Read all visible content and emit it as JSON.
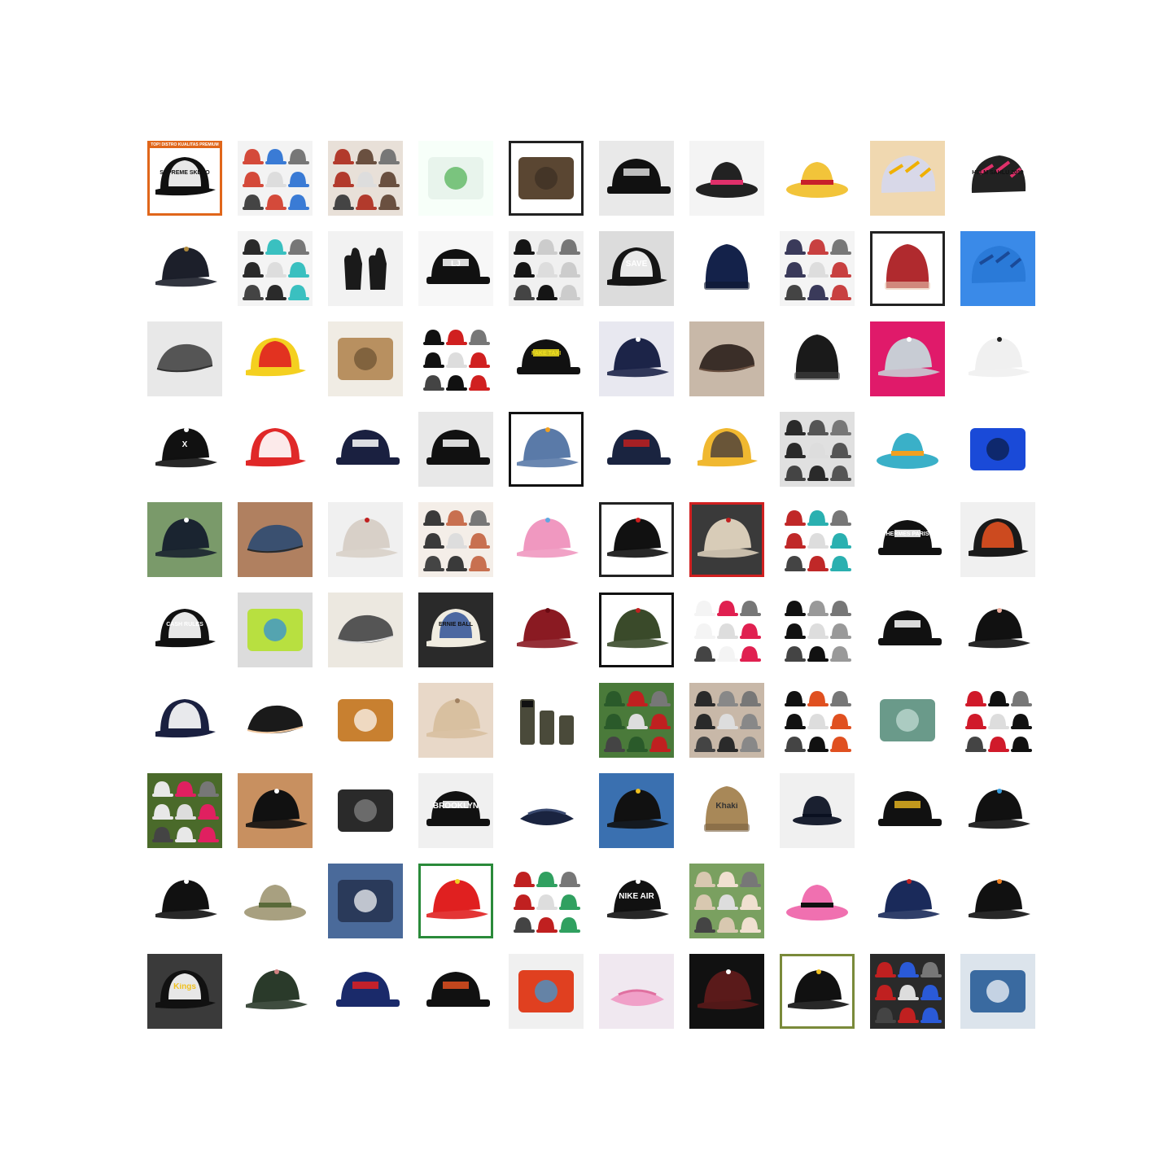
{
  "colors": {
    "background": "#ffffff"
  },
  "grid": {
    "rows": 10,
    "columns": 10
  },
  "tiles": [
    {
      "subject": "trucker-cap",
      "cap": "#101010",
      "bg": "#ffffff",
      "accent": "#ffffff",
      "frame": "#e0661a",
      "text": "SUPREME SKERO",
      "textColor": "#111111",
      "banner": "TOP! DISTRO KUALITAS PREMIUM"
    },
    {
      "subject": "cap-collage",
      "cap": "#d44a3a",
      "bg": "#f3f3f3",
      "accent": "#3a7bd5"
    },
    {
      "subject": "cap-collage",
      "cap": "#b23a2c",
      "bg": "#e8e0d8",
      "accent": "#6a5040"
    },
    {
      "subject": "product-photo",
      "cap": "#e8f4ec",
      "bg": "#f7fff9",
      "accent": "#4caf50"
    },
    {
      "subject": "product-photo",
      "cap": "#5a4632",
      "bg": "#ffffff",
      "accent": "#3a2e22",
      "frame": "#222222"
    },
    {
      "subject": "snapback",
      "cap": "#111111",
      "bg": "#e9e9e9",
      "accent": "#dddddd"
    },
    {
      "subject": "bucket-hat",
      "cap": "#222222",
      "bg": "#f4f4f4",
      "accent": "#e0306a"
    },
    {
      "subject": "bucket-hat",
      "cap": "#f2c43a",
      "bg": "#ffffff",
      "accent": "#c8202a"
    },
    {
      "subject": "helmet",
      "cap": "#d8d8e8",
      "bg": "#f0d8b0",
      "accent": "#f0b000"
    },
    {
      "subject": "helmet",
      "cap": "#222222",
      "bg": "#ffffff",
      "accent": "#e0306a",
      "text": "HELM SAHLU 2019",
      "textColor": "#111111"
    },
    {
      "subject": "baseball-cap",
      "cap": "#1c1f2a",
      "bg": "#ffffff",
      "accent": "#b08a3c"
    },
    {
      "subject": "cap-collage",
      "cap": "#2a2a2a",
      "bg": "#f4f4f4",
      "accent": "#3ac0c0"
    },
    {
      "subject": "gloves",
      "cap": "#1a1a1a",
      "bg": "#f2f2f2",
      "accent": "#888888"
    },
    {
      "subject": "snapback",
      "cap": "#111111",
      "bg": "#f7f7f7",
      "accent": "#ffffff",
      "text": "LJ",
      "textColor": "#ffffff"
    },
    {
      "subject": "cap-collage",
      "cap": "#151515",
      "bg": "#f0f0f0",
      "accent": "#cccccc"
    },
    {
      "subject": "trucker-cap",
      "cap": "#151515",
      "bg": "#dcdcdc",
      "accent": "#ffffff",
      "text": "SAVE",
      "textColor": "#ffffff"
    },
    {
      "subject": "beanie",
      "cap": "#14224a",
      "bg": "#ffffff",
      "accent": "#0e1830"
    },
    {
      "subject": "cap-collage",
      "cap": "#3a3a5a",
      "bg": "#f4f4f4",
      "accent": "#c84040"
    },
    {
      "subject": "beanie",
      "cap": "#b02a2e",
      "bg": "#ffffff",
      "accent": "#e8c8b0",
      "frame": "#222222"
    },
    {
      "subject": "helmet",
      "cap": "#2a7ad8",
      "bg": "#3a8ae8",
      "accent": "#1a4a98"
    },
    {
      "subject": "flat-cap",
      "cap": "#555555",
      "bg": "#e8e8e8",
      "accent": "#333333"
    },
    {
      "subject": "trucker-cap",
      "cap": "#f4d020",
      "bg": "#ffffff",
      "accent": "#e02020"
    },
    {
      "subject": "product-photo",
      "cap": "#b89060",
      "bg": "#f0ece4",
      "accent": "#6a5030"
    },
    {
      "subject": "cap-collage",
      "cap": "#111111",
      "bg": "#ffffff",
      "accent": "#d02020"
    },
    {
      "subject": "snapback",
      "cap": "#111111",
      "bg": "#ffffff",
      "accent": "#f0e020",
      "text": "FAKE TAXI",
      "textColor": "#f0e020"
    },
    {
      "subject": "baseball-cap",
      "cap": "#1c2448",
      "bg": "#e8e8f0",
      "accent": "#ffffff"
    },
    {
      "subject": "flat-cap",
      "cap": "#3a2e28",
      "bg": "#c8b8a8",
      "accent": "#6a5040"
    },
    {
      "subject": "beanie",
      "cap": "#1a1a1a",
      "bg": "#ffffff",
      "accent": "#444444"
    },
    {
      "subject": "baseball-cap",
      "cap": "#c8ccd4",
      "bg": "#e01a6a",
      "accent": "#ffffff"
    },
    {
      "subject": "baseball-cap",
      "cap": "#f0f0f0",
      "bg": "#ffffff",
      "accent": "#222222"
    },
    {
      "subject": "baseball-cap",
      "cap": "#111111",
      "bg": "#ffffff",
      "accent": "#ffffff",
      "text": "X",
      "textColor": "#ffffff"
    },
    {
      "subject": "trucker-cap",
      "cap": "#e02828",
      "bg": "#ffffff",
      "accent": "#ffffff"
    },
    {
      "subject": "snapback",
      "cap": "#1a2040",
      "bg": "#ffffff",
      "accent": "#ffffff"
    },
    {
      "subject": "snapback",
      "cap": "#111111",
      "bg": "#e8e8e8",
      "accent": "#ffffff"
    },
    {
      "subject": "baseball-cap",
      "cap": "#5a7aa8",
      "bg": "#ffffff",
      "accent": "#f0a020",
      "frame": "#111111"
    },
    {
      "subject": "snapback",
      "cap": "#1a2440",
      "bg": "#ffffff",
      "accent": "#c02020"
    },
    {
      "subject": "trucker-cap",
      "cap": "#f0b830",
      "bg": "#ffffff",
      "accent": "#5a4a3a"
    },
    {
      "subject": "cap-collage",
      "cap": "#2a2a2a",
      "bg": "#e0e0e0",
      "accent": "#555555"
    },
    {
      "subject": "bucket-hat",
      "cap": "#3ab0c8",
      "bg": "#ffffff",
      "accent": "#f0a020"
    },
    {
      "subject": "product-photo",
      "cap": "#1a4ad8",
      "bg": "#ffffff",
      "accent": "#0a1a40"
    },
    {
      "subject": "baseball-cap",
      "cap": "#1a2430",
      "bg": "#7a9a6a",
      "accent": "#ffffff"
    },
    {
      "subject": "flat-cap",
      "cap": "#3a5070",
      "bg": "#b08060",
      "accent": "#2a2a2a"
    },
    {
      "subject": "baseball-cap",
      "cap": "#d8d0c8",
      "bg": "#f0f0f0",
      "accent": "#c02020"
    },
    {
      "subject": "cap-collage",
      "cap": "#3a3a3a",
      "bg": "#f4eee8",
      "accent": "#c87050"
    },
    {
      "subject": "baseball-cap",
      "cap": "#f098c0",
      "bg": "#ffffff",
      "accent": "#60a8e0"
    },
    {
      "subject": "baseball-cap",
      "cap": "#111111",
      "bg": "#ffffff",
      "accent": "#d02020",
      "frame": "#222222"
    },
    {
      "subject": "baseball-cap",
      "cap": "#d8ccb8",
      "bg": "#3a3a3a",
      "accent": "#c02020",
      "frame": "#d02020"
    },
    {
      "subject": "cap-collage",
      "cap": "#c02828",
      "bg": "#ffffff",
      "accent": "#2ab0b0"
    },
    {
      "subject": "snapback",
      "cap": "#111111",
      "bg": "#ffffff",
      "accent": "#ffffff",
      "text": "HERMÈS PARIS",
      "textColor": "#ffffff"
    },
    {
      "subject": "trucker-cap",
      "cap": "#1a1a1a",
      "bg": "#f0f0f0",
      "accent": "#e05020"
    },
    {
      "subject": "trucker-cap",
      "cap": "#111111",
      "bg": "#ffffff",
      "accent": "#ffffff",
      "text": "CASH RULES",
      "textColor": "#ffffff"
    },
    {
      "subject": "product-photo",
      "cap": "#b8e040",
      "bg": "#dcdcdc",
      "accent": "#2a8ae0"
    },
    {
      "subject": "flat-cap",
      "cap": "#555555",
      "bg": "#ece8e0",
      "accent": "#dddddd"
    },
    {
      "subject": "trucker-cap",
      "cap": "#f0ece0",
      "bg": "#2a2a2a",
      "accent": "#3a5a9a",
      "text": "ERNIE BALL",
      "textColor": "#111111"
    },
    {
      "subject": "baseball-cap",
      "cap": "#8a1a22",
      "bg": "#ffffff",
      "accent": "#6a0a12"
    },
    {
      "subject": "baseball-cap",
      "cap": "#3a4a2a",
      "bg": "#ffffff",
      "accent": "#c02020",
      "frame": "#111111"
    },
    {
      "subject": "cap-collage",
      "cap": "#f4f4f4",
      "bg": "#ffffff",
      "accent": "#e02050"
    },
    {
      "subject": "cap-collage",
      "cap": "#111111",
      "bg": "#ffffff",
      "accent": "#999999"
    },
    {
      "subject": "snapback",
      "cap": "#111111",
      "bg": "#ffffff",
      "accent": "#ffffff"
    },
    {
      "subject": "baseball-cap",
      "cap": "#111111",
      "bg": "#ffffff",
      "accent": "#f0b0a0"
    },
    {
      "subject": "trucker-cap",
      "cap": "#1a2040",
      "bg": "#ffffff",
      "accent": "#ffffff"
    },
    {
      "subject": "flat-cap",
      "cap": "#1a1a1a",
      "bg": "#ffffff",
      "accent": "#f0c8a0"
    },
    {
      "subject": "product-photo",
      "cap": "#c88030",
      "bg": "#ffffff",
      "accent": "#ffffff"
    },
    {
      "subject": "baseball-cap",
      "cap": "#d8c0a0",
      "bg": "#e8d8c8",
      "accent": "#a08060"
    },
    {
      "subject": "belt",
      "cap": "#4a4a3a",
      "bg": "#ffffff",
      "accent": "#111111"
    },
    {
      "subject": "cap-collage",
      "cap": "#2a5a2a",
      "bg": "#4a7a3a",
      "accent": "#c02020"
    },
    {
      "subject": "cap-collage",
      "cap": "#2a2a2a",
      "bg": "#c8b8a8",
      "accent": "#888888"
    },
    {
      "subject": "cap-collage",
      "cap": "#111111",
      "bg": "#ffffff",
      "accent": "#e05020"
    },
    {
      "subject": "product-photo",
      "cap": "#6a9a8a",
      "bg": "#ffffff",
      "accent": "#c8e0d8"
    },
    {
      "subject": "cap-collage",
      "cap": "#d01a2a",
      "bg": "#ffffff",
      "accent": "#111111"
    },
    {
      "subject": "cap-collage",
      "cap": "#e8e8e8",
      "bg": "#4a6a2a",
      "accent": "#e02060"
    },
    {
      "subject": "baseball-cap",
      "cap": "#111111",
      "bg": "#c89060",
      "accent": "#ffffff"
    },
    {
      "subject": "product-photo",
      "cap": "#2a2a2a",
      "bg": "#ffffff",
      "accent": "#888888"
    },
    {
      "subject": "snapback",
      "cap": "#111111",
      "bg": "#f0f0f0",
      "accent": "#ffffff",
      "text": "BROOKLYN",
      "textColor": "#ffffff"
    },
    {
      "subject": "visor",
      "cap": "#1a2440",
      "bg": "#ffffff",
      "accent": "#3a4a70"
    },
    {
      "subject": "baseball-cap",
      "cap": "#111111",
      "bg": "#3a70b0",
      "accent": "#f0c020"
    },
    {
      "subject": "beanie",
      "cap": "#a88858",
      "bg": "#ffffff",
      "accent": "#7a6040",
      "text": "Khaki",
      "textColor": "#333333"
    },
    {
      "subject": "bowler-hat",
      "cap": "#1a2030",
      "bg": "#f0f0f0",
      "accent": "#0a1020"
    },
    {
      "subject": "snapback",
      "cap": "#111111",
      "bg": "#ffffff",
      "accent": "#e0b020"
    },
    {
      "subject": "baseball-cap",
      "cap": "#111111",
      "bg": "#ffffff",
      "accent": "#3aa0e0"
    },
    {
      "subject": "baseball-cap",
      "cap": "#111111",
      "bg": "#ffffff",
      "accent": "#ffffff"
    },
    {
      "subject": "bucket-hat",
      "cap": "#a8a080",
      "bg": "#ffffff",
      "accent": "#5a6a3a"
    },
    {
      "subject": "product-photo",
      "cap": "#2a3a5a",
      "bg": "#4a6a9a",
      "accent": "#ffffff"
    },
    {
      "subject": "baseball-cap",
      "cap": "#e02020",
      "bg": "#ffffff",
      "accent": "#f0d020",
      "frame": "#2a8a3a"
    },
    {
      "subject": "cap-collage",
      "cap": "#c02020",
      "bg": "#ffffff",
      "accent": "#30a060"
    },
    {
      "subject": "baseball-cap",
      "cap": "#111111",
      "bg": "#ffffff",
      "accent": "#ffffff",
      "text": "NIKE AIR",
      "textColor": "#ffffff"
    },
    {
      "subject": "cap-collage",
      "cap": "#d8c8b0",
      "bg": "#7aa060",
      "accent": "#f0e0d0"
    },
    {
      "subject": "bucket-hat",
      "cap": "#f070b0",
      "bg": "#ffffff",
      "accent": "#111111"
    },
    {
      "subject": "baseball-cap",
      "cap": "#1a2a5a",
      "bg": "#ffffff",
      "accent": "#c02020"
    },
    {
      "subject": "baseball-cap",
      "cap": "#111111",
      "bg": "#ffffff",
      "accent": "#f08020"
    },
    {
      "subject": "trucker-cap",
      "cap": "#111111",
      "bg": "#3a3a3a",
      "accent": "#ffffff",
      "text": "Kings",
      "textColor": "#f0c020"
    },
    {
      "subject": "baseball-cap",
      "cap": "#2a3a2a",
      "bg": "#ffffff",
      "accent": "#d08080"
    },
    {
      "subject": "snapback",
      "cap": "#1a2a6a",
      "bg": "#ffffff",
      "accent": "#e02020"
    },
    {
      "subject": "snapback",
      "cap": "#111111",
      "bg": "#ffffff",
      "accent": "#e05020"
    },
    {
      "subject": "product-photo",
      "cap": "#e04020",
      "bg": "#f0f0f0",
      "accent": "#30a0e0"
    },
    {
      "subject": "visor",
      "cap": "#f0a0c8",
      "bg": "#f0e8f0",
      "accent": "#e070a0"
    },
    {
      "subject": "baseball-cap",
      "cap": "#5a1a1a",
      "bg": "#111111",
      "accent": "#ffffff"
    },
    {
      "subject": "baseball-cap",
      "cap": "#111111",
      "bg": "#ffffff",
      "accent": "#f0c020",
      "frame": "#7a8a3a"
    },
    {
      "subject": "cap-collage",
      "cap": "#c02020",
      "bg": "#2a2a2a",
      "accent": "#2a5ad8"
    },
    {
      "subject": "product-photo",
      "cap": "#3a6aa0",
      "bg": "#dce4ec",
      "accent": "#ffffff"
    }
  ]
}
